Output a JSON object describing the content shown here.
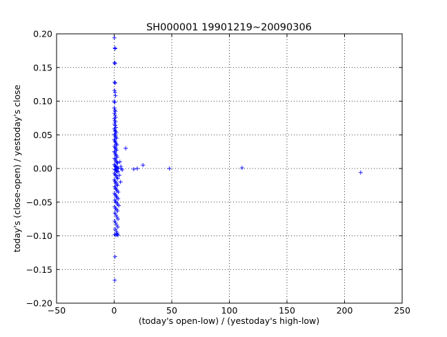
{
  "chart_data": {
    "type": "scatter",
    "title": "SH000001 19901219~20090306",
    "xlabel": "(today's open-low) / (yestoday's high-low)",
    "ylabel": "today's (close-open) / yestoday's close",
    "xlim": [
      -50,
      250
    ],
    "ylim": [
      -0.2,
      0.2
    ],
    "xticks": [
      -50,
      0,
      50,
      100,
      150,
      200,
      250
    ],
    "yticks": [
      -0.2,
      -0.15,
      -0.1,
      -0.05,
      0.0,
      0.05,
      0.1,
      0.15,
      0.2
    ],
    "xtick_labels": [
      "−50",
      "0",
      "50",
      "100",
      "150",
      "200",
      "250"
    ],
    "ytick_labels": [
      "−0.20",
      "−0.15",
      "−0.10",
      "−0.05",
      "0.00",
      "0.05",
      "0.10",
      "0.15",
      "0.20"
    ],
    "grid": true,
    "marker": "+",
    "color": "#0000ff",
    "points": [
      [
        0.2,
        0.194
      ],
      [
        0.6,
        0.179
      ],
      [
        0.9,
        0.178
      ],
      [
        0.3,
        0.157
      ],
      [
        0.8,
        0.156
      ],
      [
        0.4,
        0.128
      ],
      [
        0.9,
        0.127
      ],
      [
        0.3,
        0.116
      ],
      [
        0.8,
        0.113
      ],
      [
        1.2,
        0.108
      ],
      [
        0.1,
        0.1
      ],
      [
        0.5,
        0.098
      ],
      [
        0.2,
        0.09
      ],
      [
        0.6,
        0.087
      ],
      [
        1.0,
        0.085
      ],
      [
        0.3,
        0.082
      ],
      [
        0.8,
        0.079
      ],
      [
        1.3,
        0.076
      ],
      [
        0.2,
        0.074
      ],
      [
        0.6,
        0.071
      ],
      [
        1.1,
        0.069
      ],
      [
        0.4,
        0.066
      ],
      [
        0.9,
        0.064
      ],
      [
        1.5,
        0.061
      ],
      [
        0.2,
        0.059
      ],
      [
        0.7,
        0.057
      ],
      [
        1.2,
        0.055
      ],
      [
        1.8,
        0.053
      ],
      [
        0.3,
        0.051
      ],
      [
        0.8,
        0.049
      ],
      [
        1.4,
        0.047
      ],
      [
        2.0,
        0.045
      ],
      [
        0.1,
        0.043
      ],
      [
        0.6,
        0.041
      ],
      [
        1.1,
        0.039
      ],
      [
        1.7,
        0.037
      ],
      [
        2.4,
        0.035
      ],
      [
        0.3,
        0.033
      ],
      [
        0.9,
        0.031
      ],
      [
        1.5,
        0.029
      ],
      [
        2.1,
        0.027
      ],
      [
        0.2,
        0.025
      ],
      [
        0.7,
        0.023
      ],
      [
        1.3,
        0.021
      ],
      [
        1.9,
        0.019
      ],
      [
        2.6,
        0.017
      ],
      [
        0.4,
        0.015
      ],
      [
        1.0,
        0.013
      ],
      [
        1.6,
        0.011
      ],
      [
        2.3,
        0.009
      ],
      [
        3.0,
        0.008
      ],
      [
        0.2,
        0.006
      ],
      [
        0.8,
        0.004
      ],
      [
        1.4,
        0.003
      ],
      [
        2.0,
        0.002
      ],
      [
        2.8,
        0.001
      ],
      [
        3.6,
        0.0
      ],
      [
        0.5,
        -0.001
      ],
      [
        1.1,
        -0.002
      ],
      [
        1.8,
        -0.003
      ],
      [
        2.5,
        -0.004
      ],
      [
        3.3,
        -0.005
      ],
      [
        0.3,
        -0.007
      ],
      [
        0.9,
        -0.009
      ],
      [
        1.6,
        -0.011
      ],
      [
        2.3,
        -0.013
      ],
      [
        3.1,
        -0.015
      ],
      [
        0.2,
        -0.017
      ],
      [
        0.8,
        -0.019
      ],
      [
        1.4,
        -0.021
      ],
      [
        2.1,
        -0.023
      ],
      [
        2.9,
        -0.025
      ],
      [
        0.5,
        -0.027
      ],
      [
        1.1,
        -0.029
      ],
      [
        1.8,
        -0.031
      ],
      [
        2.6,
        -0.033
      ],
      [
        3.5,
        -0.035
      ],
      [
        0.3,
        -0.037
      ],
      [
        1.0,
        -0.039
      ],
      [
        1.7,
        -0.041
      ],
      [
        2.5,
        -0.043
      ],
      [
        3.4,
        -0.045
      ],
      [
        0.6,
        -0.047
      ],
      [
        1.3,
        -0.049
      ],
      [
        2.1,
        -0.051
      ],
      [
        3.0,
        -0.053
      ],
      [
        4.0,
        -0.055
      ],
      [
        0.4,
        -0.057
      ],
      [
        1.2,
        -0.059
      ],
      [
        2.0,
        -0.061
      ],
      [
        2.9,
        -0.063
      ],
      [
        0.7,
        -0.066
      ],
      [
        1.5,
        -0.069
      ],
      [
        2.4,
        -0.072
      ],
      [
        3.3,
        -0.075
      ],
      [
        0.5,
        -0.078
      ],
      [
        1.3,
        -0.081
      ],
      [
        2.2,
        -0.084
      ],
      [
        3.2,
        -0.087
      ],
      [
        0.9,
        -0.09
      ],
      [
        1.8,
        -0.093
      ],
      [
        2.7,
        -0.096
      ],
      [
        0.6,
        -0.098
      ],
      [
        1.5,
        -0.099
      ],
      [
        2.4,
        -0.098
      ],
      [
        3.3,
        -0.099
      ],
      [
        0.8,
        -0.131
      ],
      [
        0.5,
        -0.166
      ],
      [
        5.0,
        0.01
      ],
      [
        5.5,
        -0.02
      ],
      [
        6.0,
        0.0
      ],
      [
        4.5,
        -0.01
      ],
      [
        5.8,
        0.003
      ],
      [
        7.0,
        -0.002
      ],
      [
        10.0,
        0.03
      ],
      [
        17.0,
        -0.001
      ],
      [
        20.0,
        0.0
      ],
      [
        25.0,
        0.005
      ],
      [
        48.0,
        0.0
      ],
      [
        111.0,
        0.001
      ],
      [
        214.0,
        -0.006
      ]
    ]
  }
}
